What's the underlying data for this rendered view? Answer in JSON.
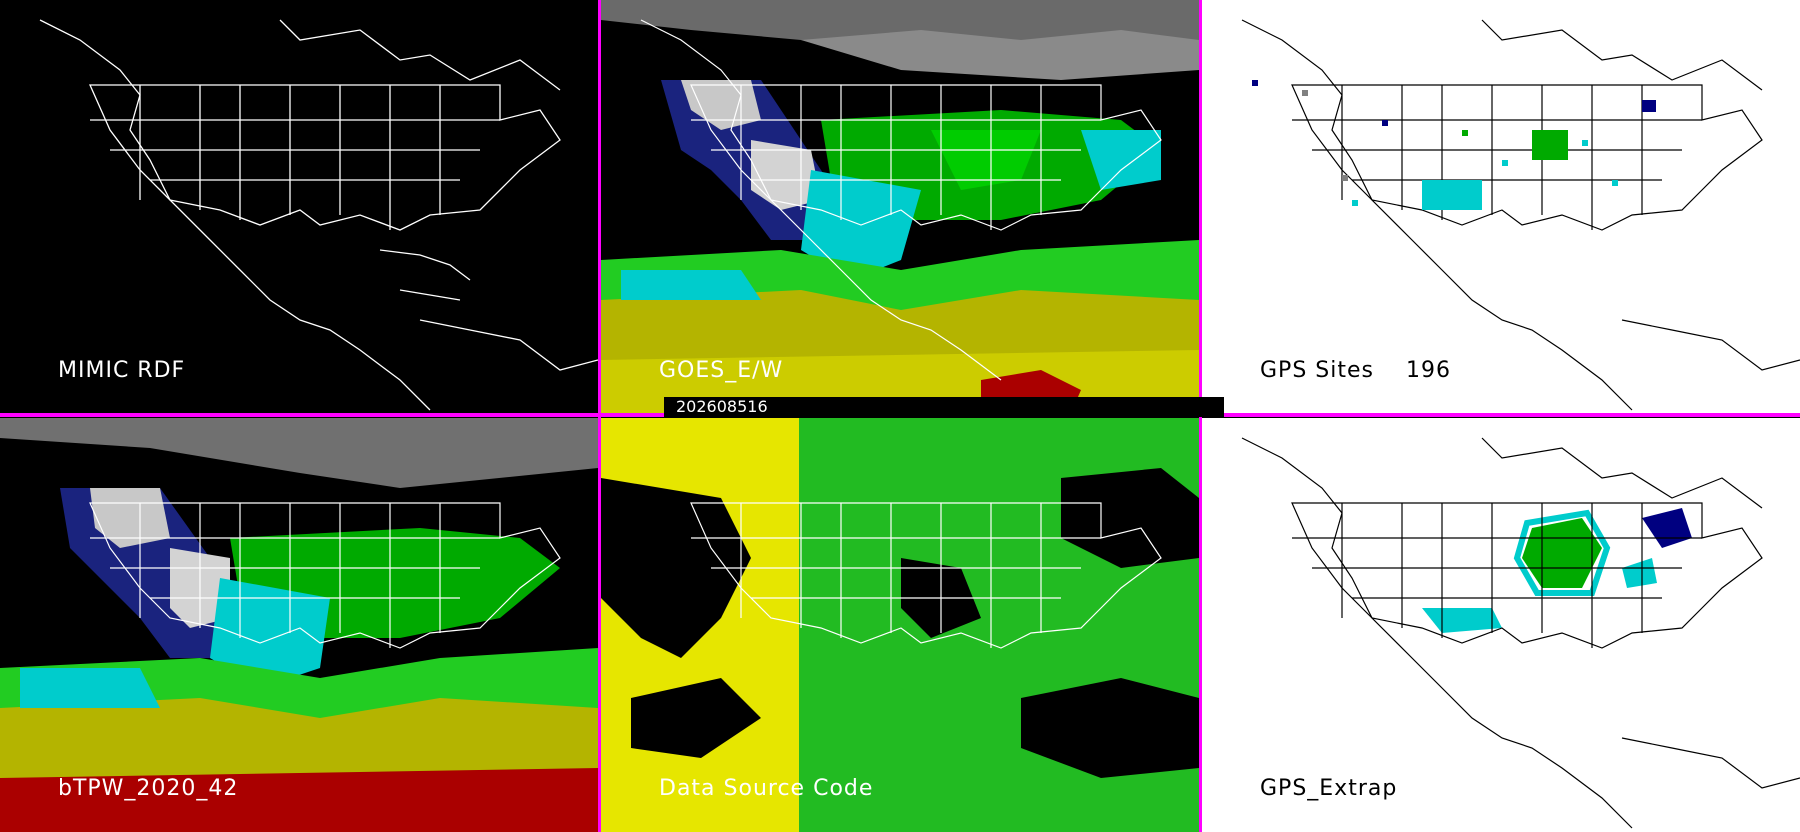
{
  "panels": {
    "mimic_rdf": {
      "label": "MIMIC RDF"
    },
    "goes_ew": {
      "label": "GOES_E/W"
    },
    "gps_sites": {
      "label": "GPS Sites    196"
    },
    "btpw": {
      "label": "bTPW_2020_42"
    },
    "data_source": {
      "label": "Data Source Code"
    },
    "gps_extrap": {
      "label": "GPS_Extrap"
    }
  },
  "timestamp": "202608516",
  "colors": {
    "divider": "#ff00ff",
    "background_dark": "#000000",
    "background_light": "#ffffff",
    "lines_on_dark": "#ffffff",
    "lines_on_light": "#000000"
  },
  "legend_colors": [
    "#808080",
    "#d3d3d3",
    "#000080",
    "#0000ff",
    "#00cccc",
    "#009900",
    "#00cc00",
    "#cccc00",
    "#ffff00",
    "#cc0000"
  ]
}
